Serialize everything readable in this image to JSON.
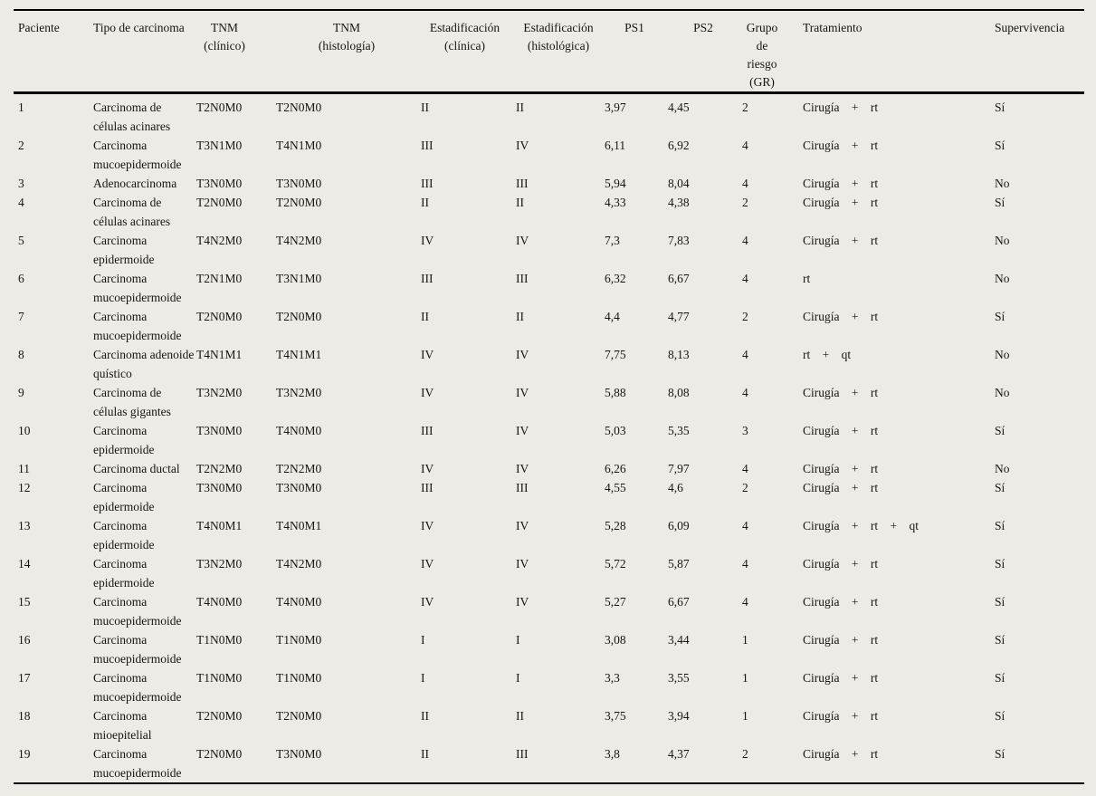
{
  "page": {
    "background": "#edebe5"
  },
  "table": {
    "header": {
      "cols": [
        {
          "id": "paciente",
          "label": "Paciente"
        },
        {
          "id": "tipo",
          "label": "Tipo de carcinoma"
        },
        {
          "id": "tnm_clinico",
          "label": "TNM (clínico)"
        },
        {
          "id": "tnm_histologia",
          "label": "TNM (histología)"
        },
        {
          "id": "estadif_clinica",
          "label": "Estadificación (clínica)"
        },
        {
          "id": "estadif_histologica",
          "label": "Estadificación (histológica)"
        },
        {
          "id": "ps1",
          "label": "PS1"
        },
        {
          "id": "ps2",
          "label": "PS2"
        },
        {
          "id": "gr",
          "label": "Grupo de riesgo (GR)"
        },
        {
          "id": "tratamiento",
          "label": "Tratamiento"
        },
        {
          "id": "supervivencia",
          "label": "Supervivencia"
        }
      ]
    },
    "rows": [
      {
        "paciente": "1",
        "tipo": "Carcinoma de células acinares",
        "tnm_clinico": "T2N0M0",
        "tnm_histologia": "T2N0M0",
        "estadif_clinica": "II",
        "estadif_histologica": "II",
        "ps1": "3,97",
        "ps2": "4,45",
        "gr": "2",
        "tratamiento": "Cirugía + rt",
        "supervivencia": "Sí"
      },
      {
        "paciente": "2",
        "tipo": "Carcinoma mucoepidermoide",
        "tnm_clinico": "T3N1M0",
        "tnm_histologia": "T4N1M0",
        "estadif_clinica": "III",
        "estadif_histologica": "IV",
        "ps1": "6,11",
        "ps2": "6,92",
        "gr": "4",
        "tratamiento": "Cirugía + rt",
        "supervivencia": "Sí"
      },
      {
        "paciente": "3",
        "tipo": "Adenocarcinoma",
        "tnm_clinico": "T3N0M0",
        "tnm_histologia": "T3N0M0",
        "estadif_clinica": "III",
        "estadif_histologica": "III",
        "ps1": "5,94",
        "ps2": "8,04",
        "gr": "4",
        "tratamiento": "Cirugía + rt",
        "supervivencia": "No"
      },
      {
        "paciente": "4",
        "tipo": "Carcinoma de células acinares",
        "tnm_clinico": "T2N0M0",
        "tnm_histologia": "T2N0M0",
        "estadif_clinica": "II",
        "estadif_histologica": "II",
        "ps1": "4,33",
        "ps2": "4,38",
        "gr": "2",
        "tratamiento": "Cirugía + rt",
        "supervivencia": "Sí"
      },
      {
        "paciente": "5",
        "tipo": "Carcinoma epidermoide",
        "tnm_clinico": "T4N2M0",
        "tnm_histologia": "T4N2M0",
        "estadif_clinica": "IV",
        "estadif_histologica": "IV",
        "ps1": "7,3",
        "ps2": "7,83",
        "gr": "4",
        "tratamiento": "Cirugía + rt",
        "supervivencia": "No"
      },
      {
        "paciente": "6",
        "tipo": "Carcinoma mucoepidermoide",
        "tnm_clinico": "T2N1M0",
        "tnm_histologia": "T3N1M0",
        "estadif_clinica": "III",
        "estadif_histologica": "III",
        "ps1": "6,32",
        "ps2": "6,67",
        "gr": "4",
        "tratamiento": "rt",
        "supervivencia": "No"
      },
      {
        "paciente": "7",
        "tipo": "Carcinoma mucoepidermoide",
        "tnm_clinico": "T2N0M0",
        "tnm_histologia": "T2N0M0",
        "estadif_clinica": "II",
        "estadif_histologica": "II",
        "ps1": "4,4",
        "ps2": "4,77",
        "gr": "2",
        "tratamiento": "Cirugía + rt",
        "supervivencia": "Sí"
      },
      {
        "paciente": "8",
        "tipo": "Carcinoma adenoide quístico",
        "tnm_clinico": "T4N1M1",
        "tnm_histologia": "T4N1M1",
        "estadif_clinica": "IV",
        "estadif_histologica": "IV",
        "ps1": "7,75",
        "ps2": "8,13",
        "gr": "4",
        "tratamiento": "rt + qt",
        "supervivencia": "No"
      },
      {
        "paciente": "9",
        "tipo": "Carcinoma de células gigantes",
        "tnm_clinico": "T3N2M0",
        "tnm_histologia": "T3N2M0",
        "estadif_clinica": "IV",
        "estadif_histologica": "IV",
        "ps1": "5,88",
        "ps2": "8,08",
        "gr": "4",
        "tratamiento": "Cirugía + rt",
        "supervivencia": "No"
      },
      {
        "paciente": "10",
        "tipo": "Carcinoma epidermoide",
        "tnm_clinico": "T3N0M0",
        "tnm_histologia": "T4N0M0",
        "estadif_clinica": "III",
        "estadif_histologica": "IV",
        "ps1": "5,03",
        "ps2": "5,35",
        "gr": "3",
        "tratamiento": "Cirugía + rt",
        "supervivencia": "Sí"
      },
      {
        "paciente": "11",
        "tipo": "Carcinoma ductal",
        "tnm_clinico": "T2N2M0",
        "tnm_histologia": "T2N2M0",
        "estadif_clinica": "IV",
        "estadif_histologica": "IV",
        "ps1": "6,26",
        "ps2": "7,97",
        "gr": "4",
        "tratamiento": "Cirugía + rt",
        "supervivencia": "No"
      },
      {
        "paciente": "12",
        "tipo": "Carcinoma epidermoide",
        "tnm_clinico": "T3N0M0",
        "tnm_histologia": "T3N0M0",
        "estadif_clinica": "III",
        "estadif_histologica": "III",
        "ps1": "4,55",
        "ps2": "4,6",
        "gr": "2",
        "tratamiento": "Cirugía + rt",
        "supervivencia": "Sí"
      },
      {
        "paciente": "13",
        "tipo": "Carcinoma epidermoide",
        "tnm_clinico": "T4N0M1",
        "tnm_histologia": "T4N0M1",
        "estadif_clinica": "IV",
        "estadif_histologica": "IV",
        "ps1": "5,28",
        "ps2": "6,09",
        "gr": "4",
        "tratamiento": "Cirugía + rt + qt",
        "supervivencia": "Sí"
      },
      {
        "paciente": "14",
        "tipo": "Carcinoma epidermoide",
        "tnm_clinico": "T3N2M0",
        "tnm_histologia": "T4N2M0",
        "estadif_clinica": "IV",
        "estadif_histologica": "IV",
        "ps1": "5,72",
        "ps2": "5,87",
        "gr": "4",
        "tratamiento": "Cirugía + rt",
        "supervivencia": "Sí"
      },
      {
        "paciente": "15",
        "tipo": "Carcinoma mucoepidermoide",
        "tnm_clinico": "T4N0M0",
        "tnm_histologia": "T4N0M0",
        "estadif_clinica": "IV",
        "estadif_histologica": "IV",
        "ps1": "5,27",
        "ps2": "6,67",
        "gr": "4",
        "tratamiento": "Cirugía + rt",
        "supervivencia": "Sí"
      },
      {
        "paciente": "16",
        "tipo": "Carcinoma mucoepidermoide",
        "tnm_clinico": "T1N0M0",
        "tnm_histologia": "T1N0M0",
        "estadif_clinica": "I",
        "estadif_histologica": "I",
        "ps1": "3,08",
        "ps2": "3,44",
        "gr": "1",
        "tratamiento": "Cirugía + rt",
        "supervivencia": "Sí"
      },
      {
        "paciente": "17",
        "tipo": "Carcinoma mucoepidermoide",
        "tnm_clinico": "T1N0M0",
        "tnm_histologia": "T1N0M0",
        "estadif_clinica": "I",
        "estadif_histologica": "I",
        "ps1": "3,3",
        "ps2": "3,55",
        "gr": "1",
        "tratamiento": "Cirugía + rt",
        "supervivencia": "Sí"
      },
      {
        "paciente": "18",
        "tipo": "Carcinoma mioepitelial",
        "tnm_clinico": "T2N0M0",
        "tnm_histologia": "T2N0M0",
        "estadif_clinica": "II",
        "estadif_histologica": "II",
        "ps1": "3,75",
        "ps2": "3,94",
        "gr": "1",
        "tratamiento": "Cirugía + rt",
        "supervivencia": "Sí"
      },
      {
        "paciente": "19",
        "tipo": "Carcinoma mucoepidermoide",
        "tnm_clinico": "T2N0M0",
        "tnm_histologia": "T3N0M0",
        "estadif_clinica": "II",
        "estadif_histologica": "III",
        "ps1": "3,8",
        "ps2": "4,37",
        "gr": "2",
        "tratamiento": "Cirugía + rt",
        "supervivencia": "Sí"
      }
    ]
  }
}
